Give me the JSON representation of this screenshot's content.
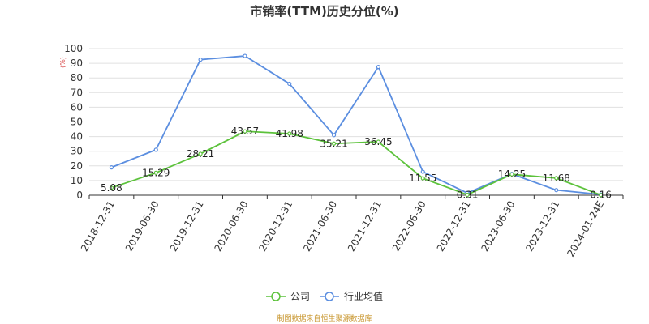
{
  "chart_data": {
    "type": "line",
    "title": "市销率(TTM)历史分位(%)",
    "ylabel": "(%)",
    "ylim": [
      0,
      100
    ],
    "yticks": [
      0,
      10,
      20,
      30,
      40,
      50,
      60,
      70,
      80,
      90,
      100
    ],
    "grid": true,
    "legend_position": "bottom",
    "categories": [
      "2018-12-31",
      "2019-06-30",
      "2019-12-31",
      "2020-06-30",
      "2020-12-31",
      "2021-06-30",
      "2021-12-31",
      "2022-06-30",
      "2022-12-31",
      "2023-06-30",
      "2023-12-31",
      "2024-01-24E"
    ],
    "series": [
      {
        "name": "公司",
        "color": "#5cc23b",
        "values": [
          5.08,
          15.29,
          28.21,
          43.57,
          41.98,
          35.21,
          36.45,
          11.55,
          0.31,
          14.25,
          11.68,
          0.16
        ],
        "labels": [
          "5.08",
          "15.29",
          "28.21",
          "43.57",
          "41.98",
          "35.21",
          "36.45",
          "11.55",
          "0.31",
          "14.25",
          "11.68",
          "0.16"
        ]
      },
      {
        "name": "行业均值",
        "color": "#5b8ee0",
        "values": [
          19,
          31,
          92.5,
          95,
          76,
          41,
          87.5,
          16,
          1.5,
          14.5,
          3.5,
          0.5
        ]
      }
    ],
    "source": "制图数据来自恒生聚源数据库"
  }
}
